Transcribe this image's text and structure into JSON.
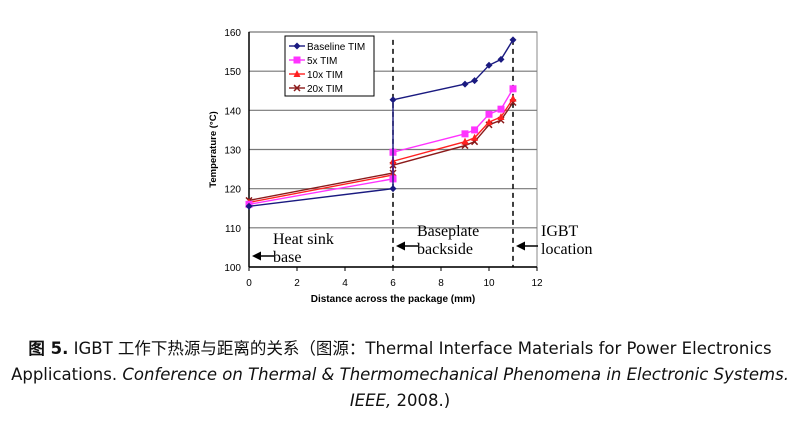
{
  "chart_data": {
    "type": "line",
    "title": "",
    "xlabel": "Distance across the package (mm)",
    "ylabel": "Temperature (°C)",
    "xlim": [
      0,
      12
    ],
    "ylim": [
      100,
      160
    ],
    "xticks": [
      0,
      2,
      4,
      6,
      8,
      10,
      12
    ],
    "yticks": [
      100,
      110,
      120,
      130,
      140,
      150,
      160
    ],
    "grid": "horizontal",
    "legend": "top-left",
    "series": [
      {
        "name": "Baseline TIM",
        "color": "#1a1a80",
        "marker": "diamond",
        "x": [
          0,
          6,
          6,
          9,
          9.4,
          10,
          10.5,
          11
        ],
        "y": [
          115.5,
          120,
          142.7,
          146.7,
          147.6,
          151.5,
          153,
          158
        ]
      },
      {
        "name": "5x TIM",
        "color": "#ff33ff",
        "marker": "square",
        "x": [
          0,
          6,
          6,
          9,
          9.4,
          10,
          10.5,
          11
        ],
        "y": [
          116,
          122.5,
          129.3,
          134,
          135,
          139,
          140.3,
          145.5
        ]
      },
      {
        "name": "10x TIM",
        "color": "#ff2020",
        "marker": "triangle",
        "x": [
          0,
          6,
          6,
          9,
          9.4,
          10,
          10.5,
          11
        ],
        "y": [
          116.5,
          123.5,
          127,
          132,
          133,
          137,
          138.3,
          143
        ]
      },
      {
        "name": "20x TIM",
        "color": "#8b1a1a",
        "marker": "x",
        "x": [
          0,
          6,
          6,
          9,
          9.4,
          10,
          10.5,
          11
        ],
        "y": [
          117,
          124,
          126,
          131,
          132,
          136.3,
          137.5,
          142
        ]
      }
    ],
    "vlines": [
      6,
      11
    ],
    "annotations": [
      {
        "lines": [
          "Heat sink",
          "base"
        ],
        "x": 0
      },
      {
        "lines": [
          "Baseplate",
          "backside"
        ],
        "x": 6
      },
      {
        "lines": [
          "IGBT",
          "location"
        ],
        "x": 11
      }
    ]
  },
  "caption": {
    "label": "图 5.",
    "text1": " IGBT 工作下热源与距离的关系（图源：Thermal Interface Materials for Power Electronics Applications. ",
    "italic": "Conference on Thermal & Thermomechanical Phenomena in Electronic Systems. IEEE,",
    "text2": " 2008.)"
  }
}
